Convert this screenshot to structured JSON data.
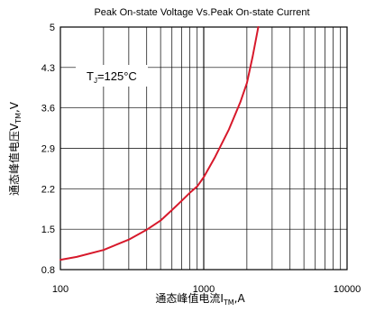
{
  "chart_data": {
    "type": "line",
    "title": "Peak On-state Voltage Vs.Peak On-state Current",
    "xlabel": {
      "main": "通态峰值电流I",
      "sub": "TM",
      "unit": ",A"
    },
    "ylabel": {
      "main": "通态峰值电压V",
      "sub": "TM",
      "unit": ",V"
    },
    "x_scale": "log",
    "xlim": [
      100,
      10000
    ],
    "ylim": [
      0.8,
      5
    ],
    "x_ticks": [
      "100",
      "1000",
      "10000"
    ],
    "y_ticks": [
      "0.8",
      "1.5",
      "2.2",
      "2.9",
      "3.6",
      "4.3",
      "5"
    ],
    "grid": true,
    "annotation": {
      "main": "T",
      "sub": "J",
      "rest": "=125°C"
    },
    "line_color": "#d7192b",
    "series": [
      {
        "x": [
          100,
          130,
          200,
          300,
          400,
          500,
          600,
          700,
          800,
          900,
          1000,
          1200,
          1500,
          1800,
          2000,
          2200,
          2400
        ],
        "y": [
          0.97,
          1.02,
          1.14,
          1.32,
          1.49,
          1.65,
          1.83,
          1.99,
          2.13,
          2.24,
          2.4,
          2.75,
          3.23,
          3.7,
          4.03,
          4.5,
          5.0
        ]
      }
    ]
  }
}
